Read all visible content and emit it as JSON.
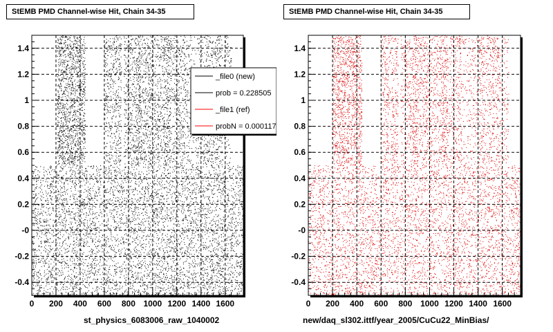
{
  "chart_data": [
    {
      "type": "scatter",
      "title": "StEMB PMD Channel-wise Hit, Chain 34-35",
      "xlabel": "st_physics_6083006_raw_1040002",
      "xlim": [
        0,
        1750
      ],
      "ylim": [
        -0.5,
        1.5
      ],
      "xticks": [
        "0",
        "200",
        "400",
        "600",
        "800",
        "1000",
        "1200",
        "1400",
        "1600"
      ],
      "yticks": [
        "-0.4",
        "-0.2",
        "-0",
        "0.2",
        "0.4",
        "0.6",
        "0.8",
        "1",
        "1.2",
        "1.4"
      ],
      "marker_color": "#000000",
      "grid": true,
      "legend": {
        "placement": "top-right",
        "entries": [
          {
            "label": "_file0 (new)",
            "color": "#000000"
          },
          {
            "label": "prob = 0.228505",
            "color": "#000000"
          },
          {
            "label": "_file1 (ref)",
            "color": "#ff0000"
          },
          {
            "label": "probN = 0.000117",
            "color": "#ff0000"
          }
        ]
      },
      "dense_bands_x": [
        [
          210,
          440
        ],
        [
          600,
          740
        ],
        [
          760,
          1150
        ],
        [
          1180,
          1270
        ],
        [
          1400,
          1580
        ]
      ],
      "upper_sparse_bands_x": [
        [
          860,
          910
        ],
        [
          1090,
          1180
        ],
        [
          1270,
          1400
        ],
        [
          1580,
          1650
        ]
      ],
      "lower_region_y": [
        -0.5,
        0.5
      ],
      "upper_region_y": [
        0.5,
        1.5
      ]
    },
    {
      "type": "scatter",
      "title": "StEMB PMD Channel-wise Hit, Chain 34-35",
      "xlabel": "new/daq_sl302.ittf/year_2005/CuCu22_MinBias/",
      "xlim": [
        0,
        1750
      ],
      "ylim": [
        -0.5,
        1.5
      ],
      "xticks": [
        "0",
        "200",
        "400",
        "600",
        "800",
        "1000",
        "1200",
        "1400",
        "1600"
      ],
      "yticks": [
        "-0.4",
        "-0.2",
        "-0",
        "0.2",
        "0.4",
        "0.6",
        "0.8",
        "1",
        "1.2",
        "1.4"
      ],
      "marker_color": "#dd0000",
      "grid": true,
      "dense_bands_x": [
        [
          200,
          440
        ],
        [
          600,
          740
        ],
        [
          760,
          1150
        ],
        [
          1180,
          1270
        ],
        [
          1400,
          1580
        ]
      ],
      "upper_sparse_bands_x": [
        [
          860,
          910
        ],
        [
          1090,
          1180
        ],
        [
          1270,
          1400
        ],
        [
          1580,
          1650
        ]
      ],
      "lower_region_y": [
        -0.5,
        0.5
      ],
      "upper_region_y": [
        0.5,
        1.5
      ]
    }
  ]
}
